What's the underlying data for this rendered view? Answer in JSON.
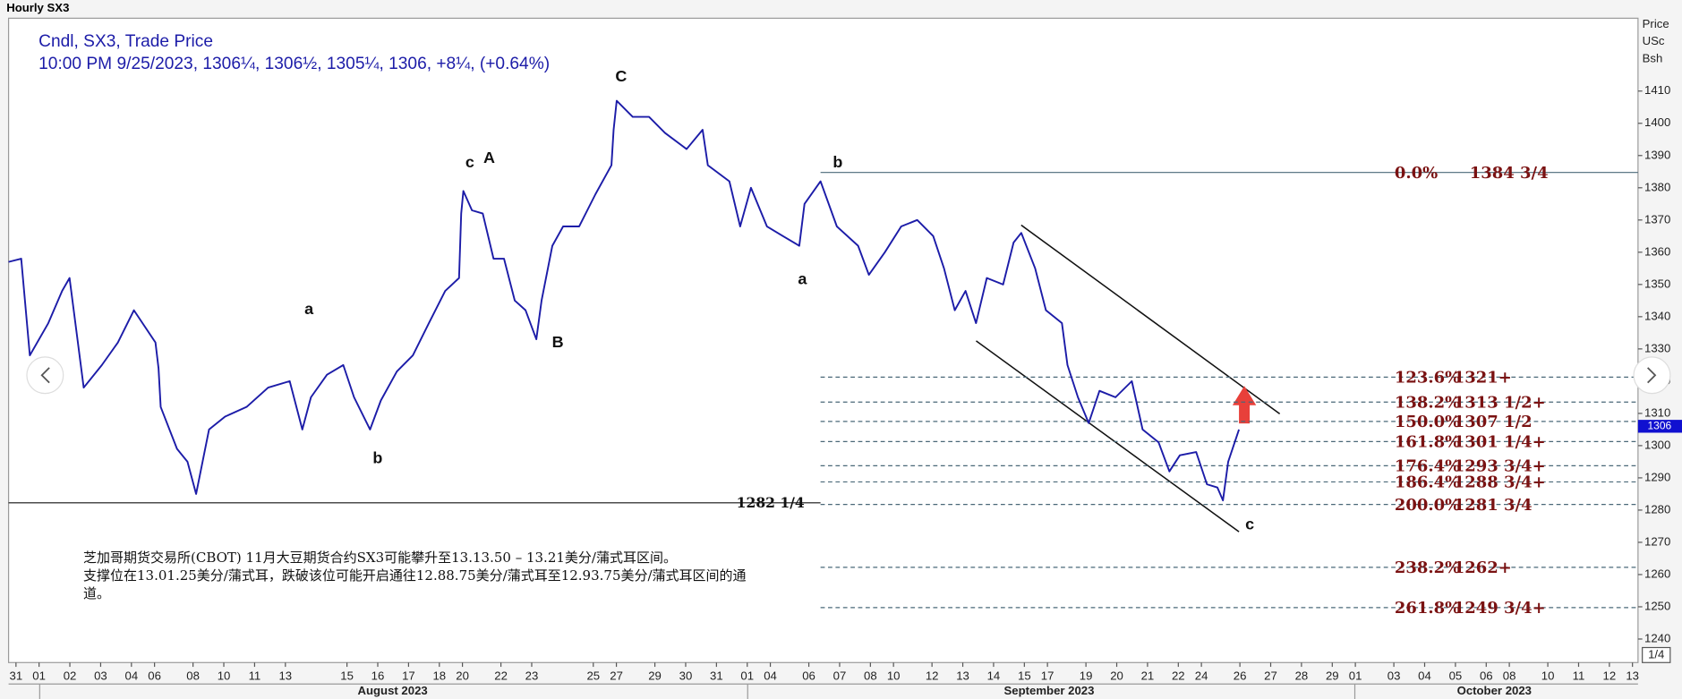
{
  "chart_data": {
    "type": "line",
    "title": "Hourly SX3",
    "subtitle": "10:00 PM 9/25/2023, 1306¼, 1306½, 1305¼, 1306, +8¼, (+0.64%)",
    "ylabel_lines": [
      "Price",
      "USc",
      "Bsh"
    ],
    "x": [
      -0.24,
      0.17,
      0.45,
      1.05,
      1.5,
      1.74,
      2.2,
      2.79,
      3.31,
      3.83,
      4.53,
      4.63,
      4.7,
      5.23,
      5.57,
      5.85,
      6.27,
      6.79,
      7.49,
      8.19,
      8.89,
      9.3,
      9.58,
      10.1,
      10.63,
      10.98,
      11.5,
      11.85,
      12.37,
      12.89,
      13.41,
      13.94,
      14.39,
      14.46,
      14.53,
      14.81,
      15.16,
      15.51,
      15.85,
      16.2,
      16.55,
      16.9,
      17.07,
      17.42,
      17.77,
      18.29,
      18.82,
      19.34,
      19.41,
      19.51,
      20.03,
      20.56,
      21.08,
      21.78,
      22.3,
      22.47,
      23.17,
      23.52,
      23.87,
      24.39,
      24.91,
      25.44,
      25.61,
      26.13,
      26.66,
      27.35,
      27.7,
      28.22,
      28.75,
      29.27,
      29.79,
      30.14,
      30.49,
      30.84,
      31.18,
      31.53,
      32.06,
      32.4,
      32.65,
      33.1,
      33.45,
      33.97,
      34.15,
      34.49,
      34.84,
      35.19,
      35.71,
      36.24,
      36.59,
      37.11,
      37.46,
      37.8,
      38.33,
      38.68,
      39.02,
      39.2,
      39.37,
      39.72
    ],
    "series": [
      {
        "name": "Cndl, SX3, Trade Price",
        "color": "#1c1ca8",
        "values": [
          1357,
          1358,
          1328,
          1338,
          1348,
          1352,
          1318,
          1325,
          1332,
          1342,
          1332,
          1324,
          1312,
          1299,
          1295,
          1285,
          1305,
          1309,
          1312,
          1318,
          1320,
          1305,
          1315,
          1322,
          1325,
          1315,
          1305,
          1314,
          1323,
          1328,
          1338,
          1348,
          1352,
          1372,
          1379,
          1373,
          1372,
          1358,
          1358,
          1345,
          1342,
          1333,
          1345,
          1362,
          1368,
          1368,
          1378,
          1387,
          1398,
          1407,
          1402,
          1402,
          1397,
          1392,
          1398,
          1387,
          1382,
          1368,
          1380,
          1368,
          1365,
          1362,
          1375,
          1382,
          1368,
          1362,
          1353,
          1360,
          1368,
          1370,
          1365,
          1355,
          1342,
          1348,
          1338,
          1352,
          1350,
          1363,
          1366,
          1355,
          1342,
          1338,
          1325,
          1315,
          1307,
          1317,
          1315,
          1320,
          1305,
          1301,
          1292,
          1297,
          1298,
          1288,
          1287,
          1283,
          1295,
          1305
        ]
      }
    ],
    "xlim": [
      -0.24,
      52.68
    ],
    "xticks": [
      {
        "value": 0,
        "label": "31"
      },
      {
        "value": 0.75,
        "label": "01"
      },
      {
        "value": 1.75,
        "label": "02"
      },
      {
        "value": 2.75,
        "label": "03"
      },
      {
        "value": 3.75,
        "label": "04"
      },
      {
        "value": 4.5,
        "label": "06"
      },
      {
        "value": 5.75,
        "label": "08"
      },
      {
        "value": 6.75,
        "label": "10"
      },
      {
        "value": 7.75,
        "label": "11"
      },
      {
        "value": 8.75,
        "label": "13"
      },
      {
        "value": 10.75,
        "label": "15"
      },
      {
        "value": 11.75,
        "label": "16"
      },
      {
        "value": 12.75,
        "label": "17"
      },
      {
        "value": 13.75,
        "label": "18"
      },
      {
        "value": 14.5,
        "label": "20"
      },
      {
        "value": 15.75,
        "label": "22"
      },
      {
        "value": 16.75,
        "label": "23"
      },
      {
        "value": 18.75,
        "label": "25"
      },
      {
        "value": 19.5,
        "label": "27"
      },
      {
        "value": 20.75,
        "label": "29"
      },
      {
        "value": 21.75,
        "label": "30"
      },
      {
        "value": 22.75,
        "label": "31"
      },
      {
        "value": 23.75,
        "label": "01"
      },
      {
        "value": 24.5,
        "label": "04"
      },
      {
        "value": 25.75,
        "label": "06"
      },
      {
        "value": 26.75,
        "label": "07"
      },
      {
        "value": 27.75,
        "label": "08"
      },
      {
        "value": 28.5,
        "label": "10"
      },
      {
        "value": 29.75,
        "label": "12"
      },
      {
        "value": 30.75,
        "label": "13"
      },
      {
        "value": 31.75,
        "label": "14"
      },
      {
        "value": 32.75,
        "label": "15"
      },
      {
        "value": 33.5,
        "label": "17"
      },
      {
        "value": 34.75,
        "label": "19"
      },
      {
        "value": 35.75,
        "label": "20"
      },
      {
        "value": 36.75,
        "label": "21"
      },
      {
        "value": 37.75,
        "label": "22"
      },
      {
        "value": 38.5,
        "label": "24"
      },
      {
        "value": 39.75,
        "label": "26"
      },
      {
        "value": 40.75,
        "label": "27"
      },
      {
        "value": 41.75,
        "label": "28"
      },
      {
        "value": 42.75,
        "label": "29"
      },
      {
        "value": 43.5,
        "label": "01"
      },
      {
        "value": 44.75,
        "label": "03"
      },
      {
        "value": 45.75,
        "label": "04"
      },
      {
        "value": 46.75,
        "label": "05"
      },
      {
        "value": 47.75,
        "label": "06"
      },
      {
        "value": 48.5,
        "label": "08"
      },
      {
        "value": 49.75,
        "label": "10"
      },
      {
        "value": 50.75,
        "label": "11"
      },
      {
        "value": 51.75,
        "label": "12"
      },
      {
        "value": 52.5,
        "label": "13"
      }
    ],
    "months": [
      "August 2023",
      "September 2023",
      "October 2023"
    ],
    "ylim": [
      1232.7,
      1432.6
    ],
    "yticks": [
      1240,
      1250,
      1260,
      1270,
      1280,
      1290,
      1300,
      1310,
      1320,
      1330,
      1340,
      1350,
      1360,
      1370,
      1380,
      1390,
      1400,
      1410
    ],
    "last_price": 1306,
    "scale_box": "1/4",
    "support_line": {
      "value": 1282.25,
      "label": "1282 1/4"
    },
    "fib_levels": [
      {
        "ratio": "0.0%",
        "price": "1384 3/4",
        "value": 1384.75
      },
      {
        "ratio": "123.6%",
        "price": "1321+",
        "value": 1321.25
      },
      {
        "ratio": "138.2%",
        "price": "1313 1/2+",
        "value": 1313.5
      },
      {
        "ratio": "150.0%",
        "price": "1307 1/2",
        "value": 1307.5
      },
      {
        "ratio": "161.8%",
        "price": "1301 1/4+",
        "value": 1301.25
      },
      {
        "ratio": "176.4%",
        "price": "1293 3/4+",
        "value": 1293.75
      },
      {
        "ratio": "186.4%",
        "price": "1288 3/4+",
        "value": 1288.75
      },
      {
        "ratio": "200.0%",
        "price": "1281 3/4",
        "value": 1281.75
      },
      {
        "ratio": "238.2%",
        "price": "1262+",
        "value": 1262.25
      },
      {
        "ratio": "261.8%",
        "price": "1249 3/4+",
        "value": 1249.75
      }
    ],
    "wave_labels": [
      "C",
      "c",
      "A",
      "B",
      "a",
      "b",
      "b",
      "a",
      "c"
    ],
    "note": [
      "芝加哥期货交易所(CBOT) 11月大豆期货合约SX3可能攀升至13.13.50 – 13.21美分/蒲式耳区间。",
      "支撑位在13.01.25美分/蒲式耳，跌破该位可能开启通往12.88.75美分/蒲式耳至12.93.75美分/蒲式耳区间的通道。"
    ]
  }
}
